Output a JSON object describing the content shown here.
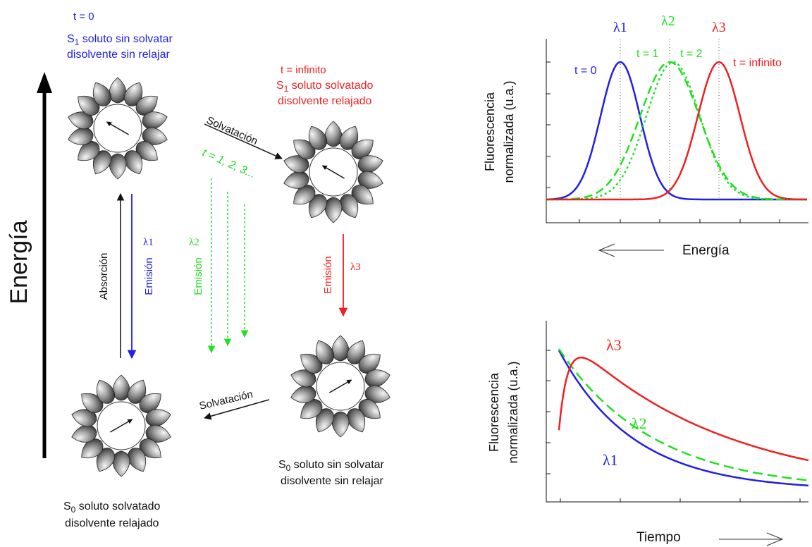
{
  "colors": {
    "blue": "#1f1fe6",
    "green": "#1fe01f",
    "red": "#f01f1f",
    "black": "#111111",
    "dotted_guide": "#555555"
  },
  "energy_axis": {
    "label": "Energía"
  },
  "states": {
    "s1_initial": {
      "time": "t = 0",
      "line1_prefix": "S",
      "line1_sub": "1",
      "line1_rest": " soluto sin solvatar",
      "line2": "disolvente sin relajar"
    },
    "s1_relaxed": {
      "time": "t = infinito",
      "line1_prefix": "S",
      "line1_sub": "1",
      "line1_rest": " soluto solvatado",
      "line2": "disolvente relajado"
    },
    "s0_unrelaxed": {
      "line1_prefix": "S",
      "line1_sub": "0",
      "line1_rest": " soluto sin solvatar",
      "line2": "disolvente sin relajar"
    },
    "s0_relaxed": {
      "line1_prefix": "S",
      "line1_sub": "0",
      "line1_rest": " soluto solvatado",
      "line2": "disolvente relajado"
    }
  },
  "transitions": {
    "solvation_top": "Solvatación",
    "solvation_times": "t = 1, 2, 3...",
    "solvation_bottom": "Solvatación",
    "absorption": "Absorción",
    "emission": "Emisión",
    "lambda1": "λ1",
    "lambda2": "λ2",
    "lambda3": "λ3"
  },
  "spectrum_chart": {
    "ylabel_line1": "Fluorescencia",
    "ylabel_line2": "normalizada (u.a.)",
    "xlabel": "Energía",
    "x_arrow": "←",
    "peak_labels": [
      "λ1",
      "λ2",
      "λ3"
    ],
    "curve_labels": [
      "t = 0",
      "t = 1",
      "t = 2",
      "t = infinito"
    ]
  },
  "decay_chart": {
    "ylabel_line1": "Fluorescencia",
    "ylabel_line2": "normalizada (u.a.)",
    "xlabel": "Tiempo",
    "x_arrow": "→",
    "curve_labels": [
      "λ3",
      "λ2",
      "λ1"
    ]
  },
  "chart_data": [
    {
      "type": "line",
      "title": "",
      "xlabel": "Energía",
      "ylabel": "Fluorescencia normalizada (u.a.)",
      "x_direction": "energy decreases to the right",
      "series": [
        {
          "name": "t = 0",
          "color": "#1f1fe6",
          "style": "solid",
          "peak_at": "λ1",
          "peak": 1.0
        },
        {
          "name": "t = 1",
          "color": "#1fe01f",
          "style": "dashed",
          "peak": 1.0
        },
        {
          "name": "t = 2",
          "color": "#1fe01f",
          "style": "dotted",
          "peak": 1.0
        },
        {
          "name": "t = infinito",
          "color": "#f01f1f",
          "style": "solid",
          "peak_at": "λ3",
          "peak": 1.0
        }
      ],
      "grid": false
    },
    {
      "type": "line",
      "title": "",
      "xlabel": "Tiempo",
      "ylabel": "Fluorescencia normalizada (u.a.)",
      "series": [
        {
          "name": "λ3",
          "color": "#f01f1f",
          "style": "solid",
          "behavior": "rise then decay"
        },
        {
          "name": "λ2",
          "color": "#1fe01f",
          "style": "dashed",
          "behavior": "decay"
        },
        {
          "name": "λ1",
          "color": "#1f1fe6",
          "style": "solid",
          "behavior": "fast decay"
        }
      ],
      "grid": false
    }
  ]
}
